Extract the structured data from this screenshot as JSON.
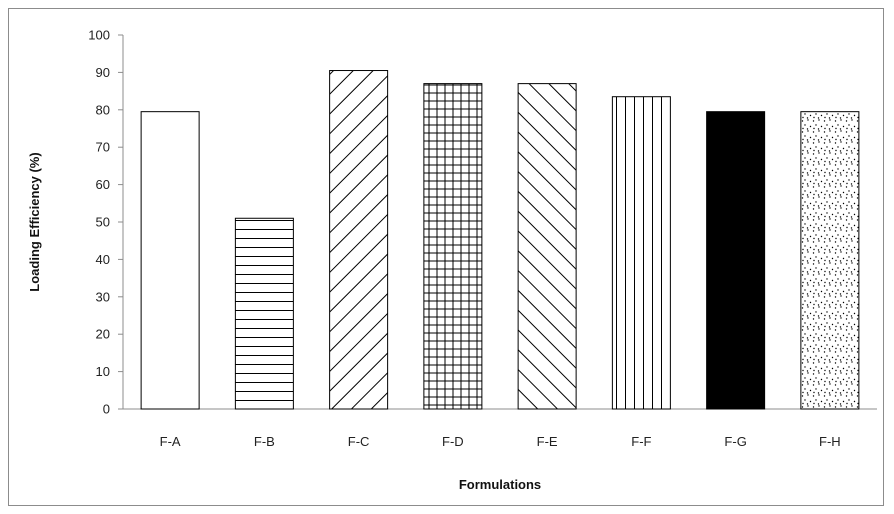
{
  "chart_data": {
    "type": "bar",
    "title": "",
    "xlabel": "Formulations",
    "ylabel": "Loading Efficiency  (%)",
    "ylim": [
      0,
      100
    ],
    "yticks": [
      0,
      10,
      20,
      30,
      40,
      50,
      60,
      70,
      80,
      90,
      100
    ],
    "grid": false,
    "legend": "none",
    "categories": [
      "F-A",
      "F-B",
      "F-C",
      "F-D",
      "F-E",
      "F-F",
      "F-G",
      "F-H"
    ],
    "values": [
      79.5,
      51,
      90.5,
      87,
      87,
      83.5,
      79.5,
      79.5
    ],
    "patterns": [
      "none",
      "horizontal-lines",
      "back-diagonal",
      "grid",
      "forward-diagonal",
      "vertical-lines",
      "solid",
      "dots"
    ],
    "colors": {
      "fill": "#ffffff",
      "stroke": "#000000",
      "solid": "#000000",
      "axis": "#8c8c8c"
    }
  }
}
